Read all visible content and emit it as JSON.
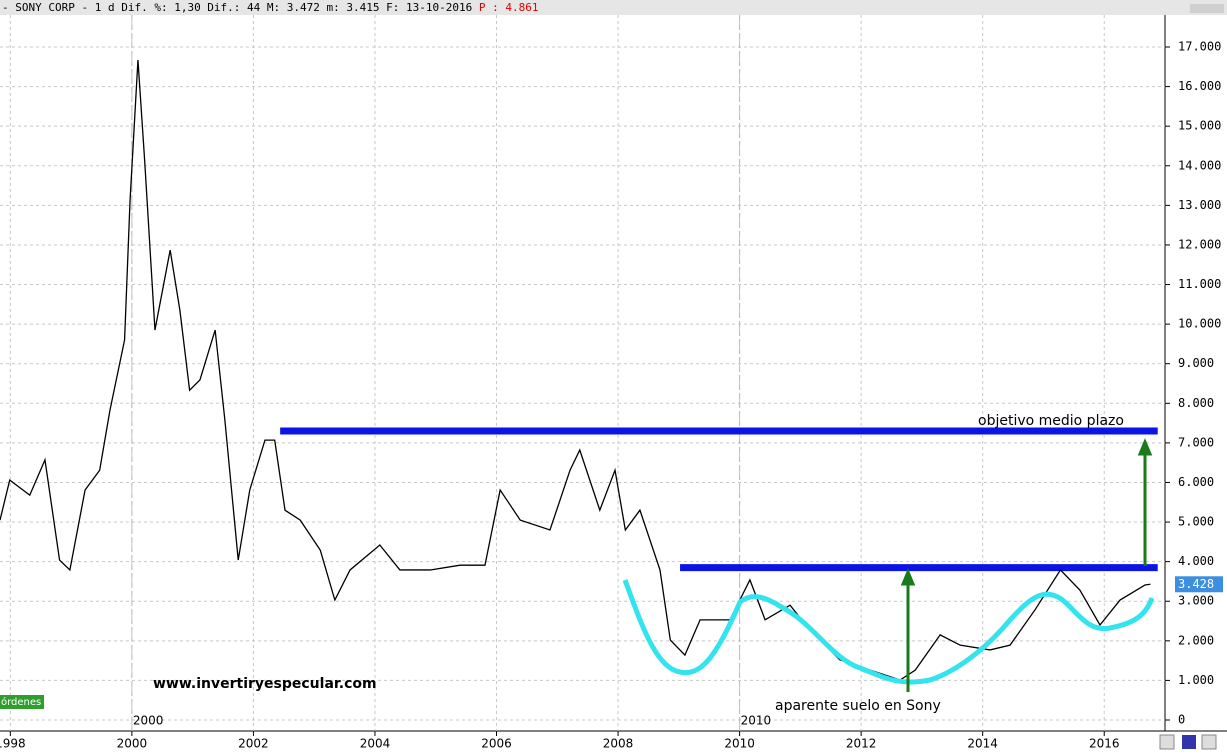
{
  "chart_data": {
    "type": "line",
    "header": {
      "name": "- SONY CORP -",
      "period": "1 d",
      "fields": "Dif. %: 1,30 Dif.: 44 M: 3.472 m: 3.415 F: 13-10-2016",
      "price": "P : 4.861"
    },
    "series": [
      {
        "color": "#000000",
        "x": [
          1997.83,
          1997.99,
          1998.32,
          1998.57,
          1998.81,
          1998.98,
          1999.23,
          1999.47,
          1999.64,
          1999.88,
          1999.97,
          2000.1,
          2000.21,
          2000.38,
          2000.63,
          2000.79,
          2000.95,
          2001.12,
          2001.37,
          2001.53,
          2001.75,
          2001.94,
          2002.19,
          2002.35,
          2002.52,
          2002.77,
          2003.1,
          2003.34,
          2003.59,
          2004.08,
          2004.41,
          2004.91,
          2005.4,
          2005.81,
          2006.06,
          2006.39,
          2006.88,
          2007.21,
          2007.37,
          2007.7,
          2007.95,
          2008.12,
          2008.36,
          2008.69,
          2008.86,
          2009.1,
          2009.35,
          2009.84,
          2010.17,
          2010.42,
          2010.83,
          2011.16,
          2011.65,
          2012.15,
          2012.64,
          2012.89,
          2013.3,
          2013.63,
          2014.12,
          2014.45,
          2014.86,
          2015.28,
          2015.6,
          2015.93,
          2016.26,
          2016.67,
          2016.76
        ],
        "values": [
          5050,
          6060,
          5680,
          6570,
          4040,
          3790,
          5810,
          6310,
          7830,
          9600,
          13130,
          16670,
          14140,
          9850,
          11870,
          10350,
          8330,
          8590,
          9850,
          7580,
          4040,
          5810,
          7070,
          7070,
          5300,
          5050,
          4290,
          3030,
          3790,
          4420,
          3790,
          3790,
          3910,
          3910,
          5810,
          5050,
          4800,
          6310,
          6820,
          5300,
          6310,
          4800,
          5300,
          3790,
          2020,
          1640,
          2530,
          2530,
          3540,
          2530,
          2900,
          2270,
          1520,
          1260,
          1010,
          1260,
          2150,
          1890,
          1770,
          1890,
          2780,
          3790,
          3280,
          2400,
          3030,
          3410,
          3428
        ]
      }
    ],
    "last_price": {
      "value": 3428,
      "label": "3.428"
    },
    "levels": [
      {
        "value": 7300,
        "x": [
          2002.44,
          2016.88
        ],
        "color": "#0a14e6"
      },
      {
        "value": 3850,
        "x": [
          2009.02,
          2016.88
        ],
        "color": "#0a14e6"
      }
    ],
    "annotations": {
      "target": "objetivo medio  plazo",
      "bottom": "aparente suelo en Sony",
      "site": "www.invertiryespecular.com",
      "orders": "órdenes"
    },
    "period_labels": [
      {
        "value": 2000,
        "label": "2000"
      },
      {
        "value": 2010,
        "label": "2010"
      }
    ],
    "xlim": [
      1997.83,
      2017.0
    ],
    "ylim": [
      0,
      17000
    ],
    "xticks": [
      1998,
      2000,
      2002,
      2004,
      2006,
      2008,
      2010,
      2012,
      2014,
      2016
    ],
    "yticks": [
      0,
      {
        "value": 1000,
        "label": "1.000"
      },
      {
        "value": 2000,
        "label": "2.000"
      },
      {
        "value": 3000,
        "label": "3.000"
      },
      {
        "value": 4000,
        "label": "4.000"
      },
      {
        "value": 5000,
        "label": "5.000"
      },
      {
        "value": 6000,
        "label": "6.000"
      },
      {
        "value": 7000,
        "label": "7.000"
      },
      {
        "value": 8000,
        "label": "8.000"
      },
      {
        "value": 9000,
        "label": "9.000"
      },
      {
        "value": 10000,
        "label": "10.000"
      },
      {
        "value": 11000,
        "label": "11.000"
      },
      {
        "value": 12000,
        "label": "12.000"
      },
      {
        "value": 13000,
        "label": "13.000"
      },
      {
        "value": 14000,
        "label": "14.000"
      },
      {
        "value": 15000,
        "label": "15.000"
      },
      {
        "value": 16000,
        "label": "16.000"
      },
      {
        "value": 17000,
        "label": "17.000"
      }
    ],
    "grid": true
  }
}
